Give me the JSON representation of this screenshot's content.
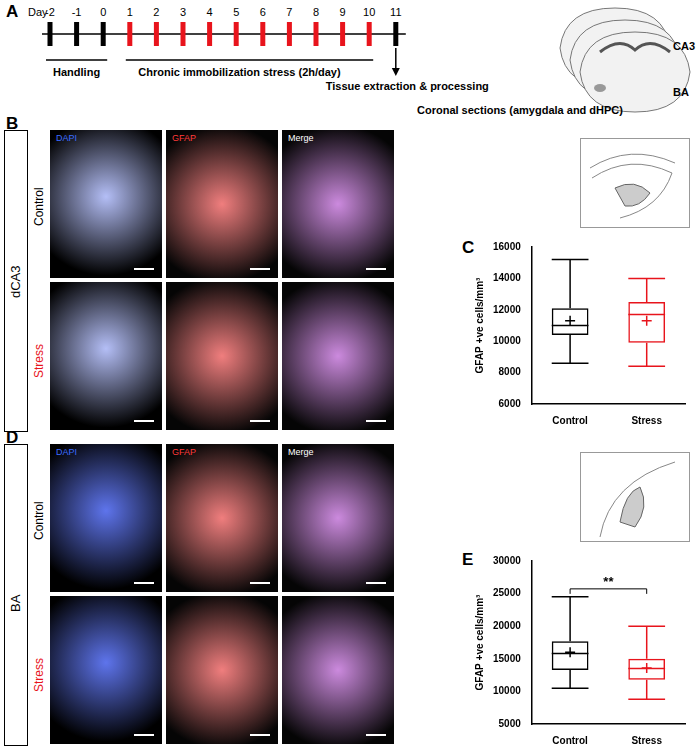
{
  "figure": {
    "panel_A": {
      "label": "A",
      "day_title": "Day",
      "days": [
        {
          "label": "-2",
          "color": "#000000"
        },
        {
          "label": "-1",
          "color": "#000000"
        },
        {
          "label": "0",
          "color": "#000000"
        },
        {
          "label": "1",
          "color": "#e8141c"
        },
        {
          "label": "2",
          "color": "#e8141c"
        },
        {
          "label": "3",
          "color": "#e8141c"
        },
        {
          "label": "4",
          "color": "#e8141c"
        },
        {
          "label": "5",
          "color": "#e8141c"
        },
        {
          "label": "6",
          "color": "#e8141c"
        },
        {
          "label": "7",
          "color": "#e8141c"
        },
        {
          "label": "8",
          "color": "#e8141c"
        },
        {
          "label": "9",
          "color": "#e8141c"
        },
        {
          "label": "10",
          "color": "#e8141c"
        },
        {
          "label": "11",
          "color": "#000000"
        }
      ],
      "handling": "Handling",
      "stress_period": "Chronic immobilization stress (2h/day)",
      "endpoint": "Tissue extraction & processing",
      "sections": "Coronal sections (amygdala and dHPC)",
      "regions": [
        "CA3",
        "BA"
      ]
    },
    "panel_B": {
      "label": "B",
      "region": "dCA3",
      "rows": [
        "Control",
        "Stress"
      ],
      "columns": [
        "DAPI",
        "GFAP",
        "Merge"
      ]
    },
    "panel_C": {
      "label": "C"
    },
    "panel_D": {
      "label": "D",
      "region": "BA",
      "rows": [
        "Control",
        "Stress"
      ],
      "columns": [
        "DAPI",
        "GFAP",
        "Merge"
      ]
    },
    "panel_E": {
      "label": "E"
    }
  },
  "chart_data": [
    {
      "type": "boxplot",
      "categories": [
        "Control",
        "Stress"
      ],
      "ylabel": "GFAP +ve cells/mm³",
      "stats": [
        {
          "min": 8600,
          "q1": 10400,
          "median": 11000,
          "q3": 12100,
          "max": 15200,
          "mean": 11300
        },
        {
          "min": 8400,
          "q1": 9900,
          "median": 11700,
          "q3": 12500,
          "max": 14000,
          "mean": 11300
        }
      ],
      "colors": [
        "#000000",
        "#e8141c"
      ],
      "ylim": [
        6000,
        16000
      ],
      "yticks": [
        6000,
        8000,
        10000,
        12000,
        14000,
        16000
      ],
      "grid": false
    },
    {
      "type": "boxplot",
      "categories": [
        "Control",
        "Stress"
      ],
      "ylabel": "GFAP +ve cells/mm³",
      "stats": [
        {
          "min": 10500,
          "q1": 13300,
          "median": 15800,
          "q3": 17700,
          "max": 24500,
          "mean": 16000
        },
        {
          "min": 8800,
          "q1": 11800,
          "median": 13500,
          "q3": 15000,
          "max": 20000,
          "mean": 13600
        }
      ],
      "colors": [
        "#000000",
        "#e8141c"
      ],
      "annotation": "**",
      "ylim": [
        5000,
        30000
      ],
      "yticks": [
        5000,
        10000,
        15000,
        20000,
        25000,
        30000
      ],
      "grid": false
    }
  ]
}
